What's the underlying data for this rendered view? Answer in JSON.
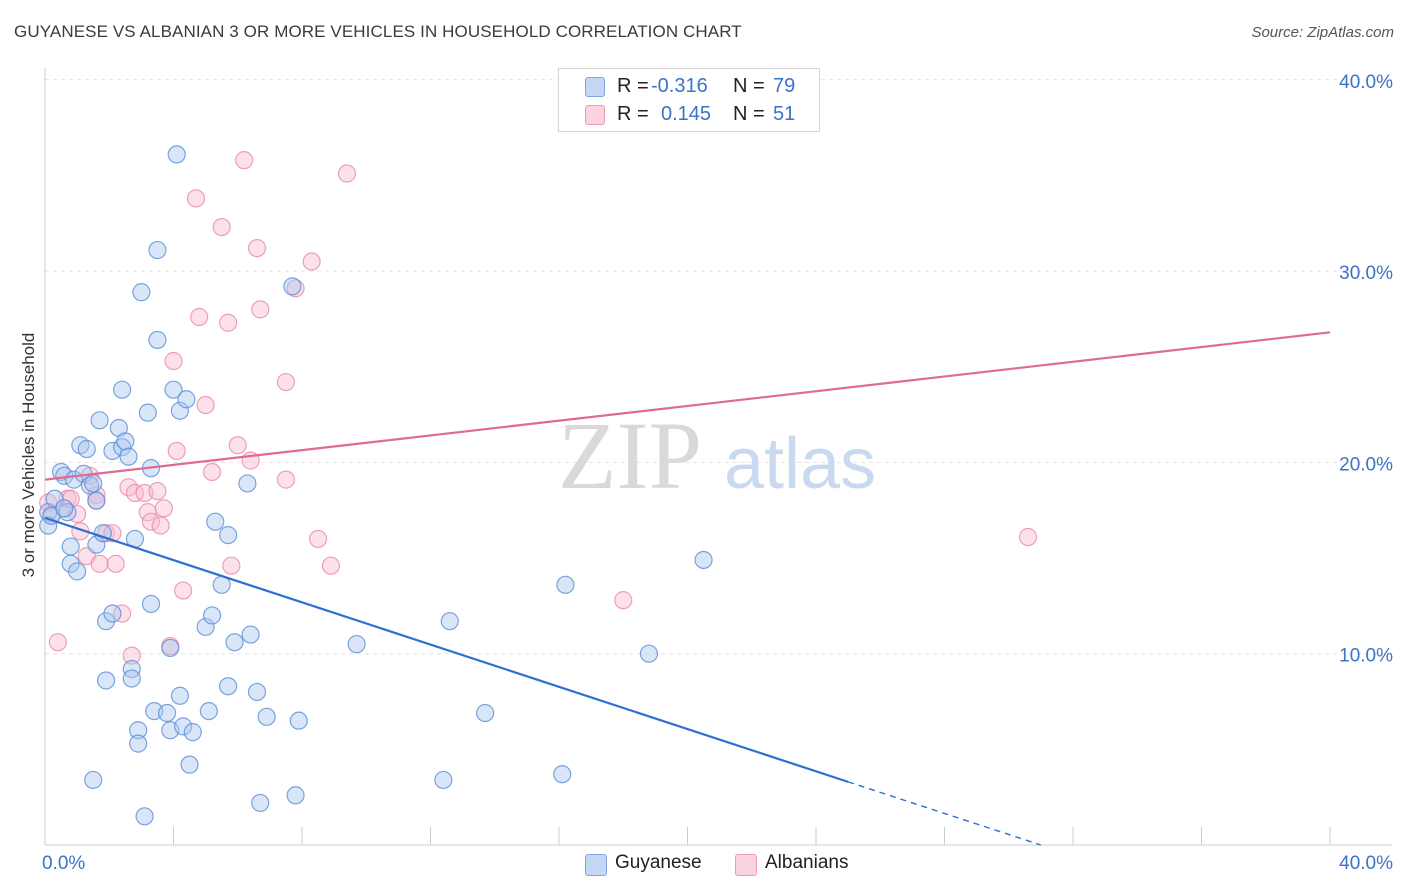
{
  "header": {
    "title": "GUYANESE VS ALBANIAN 3 OR MORE VEHICLES IN HOUSEHOLD CORRELATION CHART",
    "source": "Source: ZipAtlas.com"
  },
  "watermark": {
    "zip": "ZIP",
    "atlas": "atlas"
  },
  "legend_top": {
    "rows": [
      {
        "r_label": "R =",
        "r_value": "-0.316",
        "n_label": "N =",
        "n_value": "79",
        "color": "#aac8f0"
      },
      {
        "r_label": "R =",
        "r_value": "0.145",
        "n_label": "N =",
        "n_value": "51",
        "color": "#f8bdd0"
      }
    ]
  },
  "legend_bottom": {
    "items": [
      {
        "label": "Guyanese",
        "color": "#aac8f0"
      },
      {
        "label": "Albanians",
        "color": "#f8bdd0"
      }
    ]
  },
  "colors": {
    "blue_fill": "#aac8f0",
    "blue_stroke": "#5b8fd6",
    "blue_line": "#2e6fd0",
    "pink_fill": "#f8bdd0",
    "pink_stroke": "#e98aab",
    "pink_line": "#e06a93",
    "tick_label": "#3a73c7",
    "grid": "#e2e2e2"
  },
  "chart_data": {
    "type": "scatter",
    "title": "GUYANESE VS ALBANIAN 3 OR MORE VEHICLES IN HOUSEHOLD CORRELATION CHART",
    "xlabel": "",
    "ylabel": "3 or more Vehicles in Household",
    "xlim": [
      0,
      40
    ],
    "ylim": [
      0,
      40
    ],
    "x_tick_labels": [
      "0.0%",
      "40.0%"
    ],
    "y_ticks": [
      10,
      20,
      30,
      40
    ],
    "y_tick_labels": [
      "10.0%",
      "20.0%",
      "30.0%",
      "40.0%"
    ],
    "grid": true,
    "legend_placement": "top-center",
    "series": [
      {
        "name": "Guyanese",
        "r": -0.316,
        "n": 79,
        "trend": {
          "x0": 0,
          "y0": 17.1,
          "x1": 25.0,
          "y1": 3.3,
          "dash_to_x": 31.0,
          "dash_to_y": 0
        },
        "points": [
          [
            0.1,
            17.4
          ],
          [
            0.1,
            16.7
          ],
          [
            0.2,
            17.2
          ],
          [
            0.5,
            19.5
          ],
          [
            0.6,
            19.3
          ],
          [
            0.7,
            17.4
          ],
          [
            0.8,
            15.6
          ],
          [
            0.8,
            14.7
          ],
          [
            0.9,
            19.1
          ],
          [
            1.0,
            14.3
          ],
          [
            1.1,
            20.9
          ],
          [
            1.2,
            19.4
          ],
          [
            1.3,
            20.7
          ],
          [
            1.4,
            18.8
          ],
          [
            1.5,
            18.9
          ],
          [
            1.6,
            15.7
          ],
          [
            1.7,
            22.2
          ],
          [
            1.8,
            16.3
          ],
          [
            1.9,
            11.7
          ],
          [
            1.9,
            8.6
          ],
          [
            2.1,
            20.6
          ],
          [
            2.1,
            12.1
          ],
          [
            2.3,
            21.8
          ],
          [
            2.4,
            20.8
          ],
          [
            2.4,
            23.8
          ],
          [
            2.5,
            21.1
          ],
          [
            2.6,
            20.3
          ],
          [
            2.7,
            9.2
          ],
          [
            2.7,
            8.7
          ],
          [
            2.8,
            16.0
          ],
          [
            2.9,
            6.0
          ],
          [
            2.9,
            5.3
          ],
          [
            3.0,
            28.9
          ],
          [
            3.2,
            22.6
          ],
          [
            3.3,
            19.7
          ],
          [
            3.3,
            12.6
          ],
          [
            3.4,
            7.0
          ],
          [
            3.5,
            26.4
          ],
          [
            3.5,
            31.1
          ],
          [
            3.8,
            6.9
          ],
          [
            3.9,
            10.3
          ],
          [
            3.9,
            6.0
          ],
          [
            4.0,
            23.8
          ],
          [
            4.1,
            36.1
          ],
          [
            4.2,
            7.8
          ],
          [
            4.2,
            22.7
          ],
          [
            4.3,
            6.2
          ],
          [
            4.4,
            23.3
          ],
          [
            4.5,
            4.2
          ],
          [
            4.6,
            5.9
          ],
          [
            5.0,
            11.4
          ],
          [
            5.1,
            7.0
          ],
          [
            5.2,
            12.0
          ],
          [
            5.3,
            16.9
          ],
          [
            5.5,
            13.6
          ],
          [
            5.7,
            8.3
          ],
          [
            5.7,
            16.2
          ],
          [
            5.9,
            10.6
          ],
          [
            6.3,
            18.9
          ],
          [
            6.4,
            11.0
          ],
          [
            6.6,
            8.0
          ],
          [
            6.7,
            2.2
          ],
          [
            6.9,
            6.7
          ],
          [
            7.7,
            29.2
          ],
          [
            7.8,
            2.6
          ],
          [
            7.9,
            6.5
          ],
          [
            9.7,
            10.5
          ],
          [
            12.4,
            3.4
          ],
          [
            12.6,
            11.7
          ],
          [
            13.7,
            6.9
          ],
          [
            16.1,
            3.7
          ],
          [
            16.2,
            13.6
          ],
          [
            18.8,
            10.0
          ],
          [
            20.5,
            14.9
          ],
          [
            1.5,
            3.4
          ],
          [
            3.1,
            1.5
          ],
          [
            0.3,
            18.1
          ],
          [
            0.6,
            17.6
          ],
          [
            1.6,
            18.0
          ]
        ]
      },
      {
        "name": "Albanians",
        "r": 0.145,
        "n": 51,
        "trend": {
          "x0": 0,
          "y0": 19.1,
          "x1": 40,
          "y1": 26.8
        },
        "points": [
          [
            0.1,
            17.9
          ],
          [
            0.2,
            17.3
          ],
          [
            0.4,
            10.6
          ],
          [
            0.6,
            17.6
          ],
          [
            0.7,
            18.1
          ],
          [
            0.8,
            18.1
          ],
          [
            1.0,
            17.3
          ],
          [
            1.1,
            16.4
          ],
          [
            1.3,
            15.1
          ],
          [
            1.4,
            19.3
          ],
          [
            1.6,
            18.3
          ],
          [
            1.7,
            14.7
          ],
          [
            1.9,
            16.3
          ],
          [
            2.1,
            16.3
          ],
          [
            2.2,
            14.7
          ],
          [
            2.4,
            12.1
          ],
          [
            2.6,
            18.7
          ],
          [
            2.7,
            9.9
          ],
          [
            2.8,
            18.4
          ],
          [
            3.1,
            18.4
          ],
          [
            3.2,
            17.4
          ],
          [
            3.3,
            16.9
          ],
          [
            3.5,
            18.5
          ],
          [
            3.6,
            16.7
          ],
          [
            3.7,
            17.6
          ],
          [
            3.9,
            10.4
          ],
          [
            4.0,
            25.3
          ],
          [
            4.1,
            20.6
          ],
          [
            4.3,
            13.3
          ],
          [
            4.7,
            33.8
          ],
          [
            4.8,
            27.6
          ],
          [
            5.0,
            23.0
          ],
          [
            5.2,
            19.5
          ],
          [
            5.5,
            32.3
          ],
          [
            5.7,
            27.3
          ],
          [
            5.8,
            14.6
          ],
          [
            6.0,
            20.9
          ],
          [
            6.2,
            35.8
          ],
          [
            6.4,
            20.1
          ],
          [
            6.6,
            31.2
          ],
          [
            6.7,
            28.0
          ],
          [
            7.5,
            24.2
          ],
          [
            7.5,
            19.1
          ],
          [
            7.8,
            29.1
          ],
          [
            8.3,
            30.5
          ],
          [
            8.5,
            16.0
          ],
          [
            8.9,
            14.6
          ],
          [
            9.4,
            35.1
          ],
          [
            18.0,
            12.8
          ],
          [
            30.6,
            16.1
          ],
          [
            1.6,
            18.0
          ]
        ]
      }
    ]
  }
}
